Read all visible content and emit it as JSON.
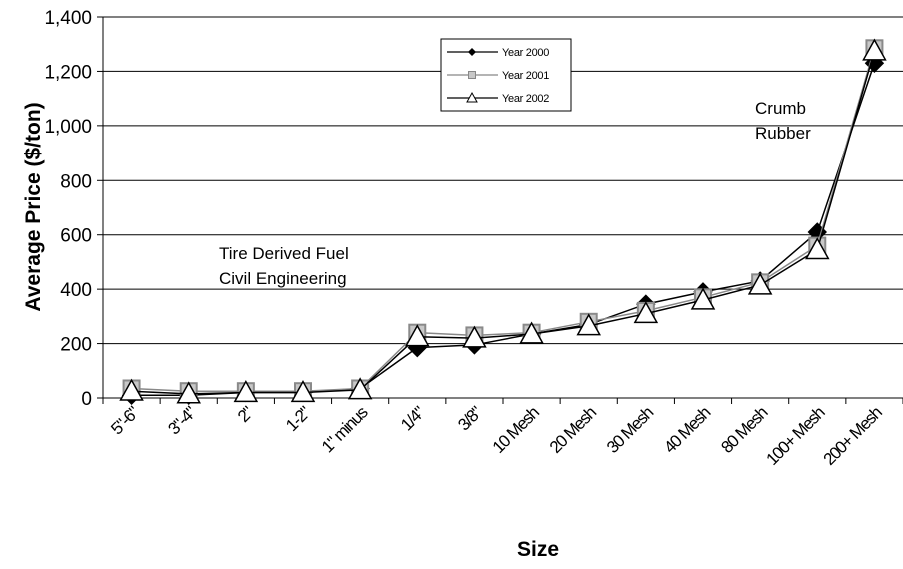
{
  "chart_data": {
    "type": "line",
    "categories": [
      "5\"-6\"",
      "3\"-4\"",
      "2\"",
      "1-2\"",
      "1\" minus",
      "1/4\"",
      "3/8\"",
      "10 Mesh",
      "20 Mesh",
      "30 Mesh",
      "40 Mesh",
      "80 Mesh",
      "100+ Mesh",
      "200+ Mesh"
    ],
    "series": [
      {
        "name": "Year 2000",
        "marker": "diamond",
        "color": "#000000",
        "values": [
          10,
          10,
          20,
          20,
          35,
          185,
          195,
          235,
          270,
          345,
          390,
          430,
          610,
          1230
        ]
      },
      {
        "name": "Year 2001",
        "marker": "square",
        "color": "#999999",
        "values": [
          35,
          25,
          25,
          25,
          35,
          240,
          230,
          240,
          280,
          320,
          370,
          425,
          560,
          1285
        ]
      },
      {
        "name": "Year 2002",
        "marker": "triangle",
        "color": "#000000",
        "values": [
          25,
          15,
          20,
          20,
          30,
          225,
          220,
          235,
          265,
          310,
          360,
          415,
          545,
          1275
        ]
      }
    ],
    "xlabel": "Size",
    "ylabel": "Average Price ($/ton)",
    "ylim": [
      0,
      1400
    ],
    "yticks": [
      0,
      200,
      400,
      600,
      800,
      1000,
      1200,
      1400
    ],
    "ytick_labels": [
      "0",
      "200",
      "400",
      "600",
      "800",
      "1,000",
      "1,200",
      "1,400"
    ],
    "grid": "horizontal",
    "legend_position": "top-center",
    "annotations": [
      {
        "id": "tdf",
        "lines": [
          "Tire Derived Fuel",
          "Civil Engineering"
        ]
      },
      {
        "id": "crumb",
        "lines": [
          "Crumb",
          "Rubber"
        ]
      }
    ]
  }
}
